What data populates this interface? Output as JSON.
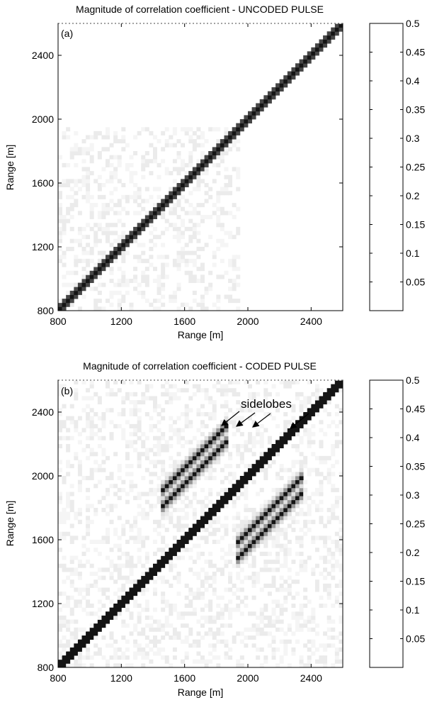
{
  "chart_data": [
    {
      "type": "heatmap",
      "panel_label": "(a)",
      "title": "Magnitude of correlation coefficient - UNCODED PULSE",
      "xlabel": "Range [m]",
      "ylabel": "Range [m]",
      "xlim": [
        800,
        2600
      ],
      "ylim": [
        800,
        2600
      ],
      "xticks": [
        800,
        1200,
        1600,
        2000,
        2400
      ],
      "yticks": [
        800,
        1200,
        1600,
        2000,
        2400
      ],
      "grid": false,
      "colorbar": {
        "min": 0,
        "max": 0.5,
        "step": 0.05,
        "labels": [
          "0.05",
          "0.1",
          "0.15",
          "0.2",
          "0.25",
          "0.3",
          "0.35",
          "0.4",
          "0.45",
          "0.5"
        ]
      },
      "features": [
        {
          "kind": "diagonal",
          "from": 800,
          "to": 2600,
          "value": 0.5
        },
        {
          "kind": "noise_region",
          "x": [
            800,
            1950
          ],
          "y": [
            800,
            1950
          ],
          "value": 0.08
        }
      ]
    },
    {
      "type": "heatmap",
      "panel_label": "(b)",
      "title": "Magnitude of correlation coefficient - CODED PULSE",
      "xlabel": "Range [m]",
      "ylabel": "Range [m]",
      "xlim": [
        800,
        2600
      ],
      "ylim": [
        800,
        2600
      ],
      "xticks": [
        800,
        1200,
        1600,
        2000,
        2400
      ],
      "yticks": [
        800,
        1200,
        1600,
        2000,
        2400
      ],
      "grid": false,
      "annotation": "sidelobes",
      "colorbar": {
        "min": 0,
        "max": 0.5,
        "step": 0.05,
        "labels": [
          "0.05",
          "0.1",
          "0.15",
          "0.2",
          "0.25",
          "0.3",
          "0.35",
          "0.4",
          "0.45",
          "0.5"
        ]
      },
      "features": [
        {
          "kind": "diagonal",
          "from": 800,
          "to": 2600,
          "value": 0.5
        },
        {
          "kind": "sidelobe_band",
          "offset": 350,
          "x": [
            1450,
            1870
          ],
          "value": 0.45
        },
        {
          "kind": "sidelobe_band",
          "offset": 450,
          "x": [
            1450,
            1870
          ],
          "value": 0.45
        },
        {
          "kind": "sidelobe_band",
          "offset": -350,
          "x": [
            1920,
            2340
          ],
          "value": 0.45
        },
        {
          "kind": "sidelobe_band",
          "offset": -450,
          "x": [
            1920,
            2340
          ],
          "value": 0.45
        },
        {
          "kind": "noise_region",
          "x": [
            800,
            2600
          ],
          "y": [
            800,
            2600
          ],
          "value": 0.08
        }
      ]
    }
  ]
}
